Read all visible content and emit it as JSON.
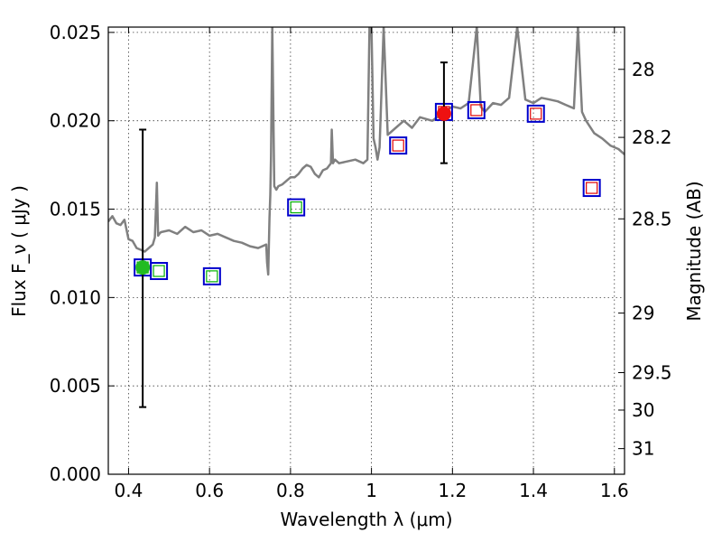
{
  "chart_data": {
    "type": "scatter",
    "xlabel": "Wavelength  λ (μm)",
    "ylabel": "Flux  F_ν  ( μJy )",
    "ylabel_right": "Magnitude (AB)",
    "xlim": [
      0.35,
      1.625
    ],
    "ylim": [
      0.0,
      0.0253
    ],
    "x_ticks": [
      0.4,
      0.6,
      0.8,
      1.0,
      1.2,
      1.4,
      1.6
    ],
    "x_tick_labels": [
      "0.4",
      "0.6",
      "0.8",
      "1",
      "1.2",
      "1.4",
      "1.6"
    ],
    "y_ticks": [
      0.0,
      0.005,
      0.01,
      0.015,
      0.02,
      0.025
    ],
    "y_tick_labels": [
      "0.000",
      "0.005",
      "0.010",
      "0.015",
      "0.020",
      "0.025"
    ],
    "right_ticks_flux": [
      0.02291,
      0.01906,
      0.01445,
      0.00912,
      0.00575,
      0.00363,
      0.00145
    ],
    "right_tick_labels": [
      "28",
      "28.2",
      "28.5",
      "29",
      "29.5",
      "30",
      "31"
    ],
    "grid": true,
    "colors": {
      "spectrum": "#808080",
      "square_outer": "#0000cc",
      "square_inner_green": "#00b000",
      "square_inner_red": "#e00000",
      "point_green": "#22bb22",
      "point_red": "#ee1111"
    },
    "series": [
      {
        "kind": "line",
        "x": [
          0.35,
          0.36,
          0.37,
          0.38,
          0.39,
          0.4,
          0.41,
          0.42,
          0.43,
          0.44,
          0.45,
          0.46,
          0.465,
          0.47,
          0.473,
          0.476,
          0.48,
          0.5,
          0.52,
          0.54,
          0.56,
          0.58,
          0.6,
          0.62,
          0.64,
          0.66,
          0.68,
          0.7,
          0.72,
          0.74,
          0.742,
          0.745,
          0.748,
          0.75,
          0.752,
          0.755,
          0.76,
          0.765,
          0.77,
          0.78,
          0.79,
          0.8,
          0.81,
          0.82,
          0.83,
          0.84,
          0.85,
          0.86,
          0.87,
          0.88,
          0.89,
          0.9,
          0.902,
          0.905,
          0.91,
          0.92,
          0.94,
          0.96,
          0.98,
          0.99,
          0.995,
          1.0,
          1.005,
          1.01,
          1.015,
          1.02,
          1.03,
          1.04,
          1.06,
          1.08,
          1.1,
          1.12,
          1.15,
          1.18,
          1.2,
          1.22,
          1.24,
          1.26,
          1.27,
          1.28,
          1.3,
          1.32,
          1.34,
          1.36,
          1.38,
          1.4,
          1.42,
          1.44,
          1.46,
          1.48,
          1.5,
          1.51,
          1.52,
          1.53,
          1.55,
          1.57,
          1.59,
          1.61,
          1.625
        ],
        "y": [
          0.0143,
          0.0146,
          0.0142,
          0.0141,
          0.0144,
          0.0133,
          0.0132,
          0.0128,
          0.0127,
          0.0126,
          0.0128,
          0.013,
          0.0134,
          0.0165,
          0.0135,
          0.0136,
          0.0137,
          0.0138,
          0.0136,
          0.014,
          0.0137,
          0.0138,
          0.0135,
          0.0136,
          0.0134,
          0.0132,
          0.0131,
          0.0129,
          0.0128,
          0.013,
          0.012,
          0.0113,
          0.0145,
          0.0158,
          0.018,
          0.027,
          0.0163,
          0.0161,
          0.0163,
          0.0164,
          0.0166,
          0.0168,
          0.0168,
          0.017,
          0.0173,
          0.0175,
          0.0174,
          0.017,
          0.0168,
          0.0172,
          0.0173,
          0.0176,
          0.0195,
          0.0176,
          0.0178,
          0.0176,
          0.0177,
          0.0178,
          0.0176,
          0.0178,
          0.027,
          0.027,
          0.019,
          0.0185,
          0.0178,
          0.0185,
          0.027,
          0.0192,
          0.0196,
          0.02,
          0.0196,
          0.0202,
          0.02,
          0.0205,
          0.0208,
          0.0207,
          0.021,
          0.027,
          0.0208,
          0.0205,
          0.021,
          0.0209,
          0.0213,
          0.027,
          0.0212,
          0.021,
          0.0213,
          0.0212,
          0.0211,
          0.0209,
          0.0207,
          0.027,
          0.0205,
          0.02,
          0.0193,
          0.019,
          0.0186,
          0.0184,
          0.0181
        ]
      },
      {
        "kind": "band-squares-green",
        "x": [
          0.435,
          0.475,
          0.606,
          0.814
        ],
        "y": [
          0.0117,
          0.0115,
          0.0112,
          0.0151
        ]
      },
      {
        "kind": "band-squares-red",
        "x": [
          1.179,
          1.259,
          1.406,
          1.544
        ],
        "y": [
          0.0205,
          0.0206,
          0.0204,
          0.0162
        ]
      },
      {
        "kind": "band-squares-red",
        "x": [
          1.066
        ],
        "y": [
          0.0186
        ]
      },
      {
        "kind": "measured-points",
        "points": [
          {
            "x": 0.435,
            "y": 0.0117,
            "yerr_low": 0.0038,
            "yerr_high": 0.0195,
            "color": "green"
          },
          {
            "x": 1.179,
            "y": 0.0204,
            "yerr_low": 0.0176,
            "yerr_high": 0.0233,
            "color": "red"
          }
        ]
      }
    ]
  }
}
